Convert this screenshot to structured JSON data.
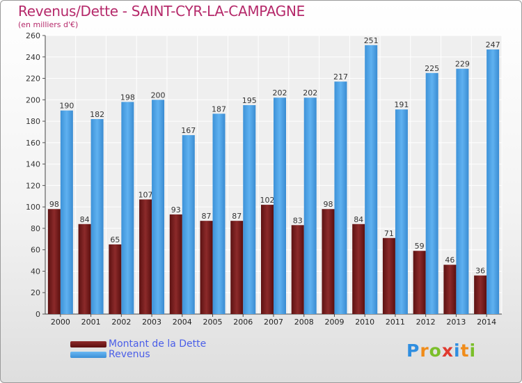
{
  "chart_data": {
    "type": "bar",
    "title": "Revenus/Dette - SAINT-CYR-LA-CAMPAGNE",
    "subtitle": "(en milliers d'€)",
    "xlabel": "",
    "ylabel": "",
    "ylim": [
      0,
      260
    ],
    "yticks": [
      0,
      20,
      40,
      60,
      80,
      100,
      120,
      140,
      160,
      180,
      200,
      220,
      240,
      260
    ],
    "grid": true,
    "categories": [
      "2000",
      "2001",
      "2002",
      "2003",
      "2004",
      "2005",
      "2006",
      "2007",
      "2008",
      "2009",
      "2010",
      "2011",
      "2012",
      "2013",
      "2014"
    ],
    "series": [
      {
        "name": "Montant de la Dette",
        "color": "#7a1f1f",
        "values": [
          98,
          84,
          65,
          107,
          93,
          87,
          87,
          102,
          83,
          98,
          84,
          71,
          59,
          46,
          36
        ]
      },
      {
        "name": "Revenus",
        "color": "#4fa3e8",
        "values": [
          190,
          182,
          198,
          200,
          167,
          187,
          195,
          202,
          202,
          217,
          251,
          191,
          225,
          229,
          247
        ]
      }
    ]
  },
  "legend": {
    "debt_label": "Montant de la Dette",
    "revenue_label": "Revenus"
  },
  "logo": {
    "letters": [
      "P",
      "r",
      "o",
      "x",
      "i",
      "t",
      "i"
    ],
    "colors": [
      "#2f8ee0",
      "#f08c1a",
      "#7bbf2a",
      "#e03a2f",
      "#2f8ee0",
      "#f08c1a",
      "#7bbf2a"
    ]
  }
}
